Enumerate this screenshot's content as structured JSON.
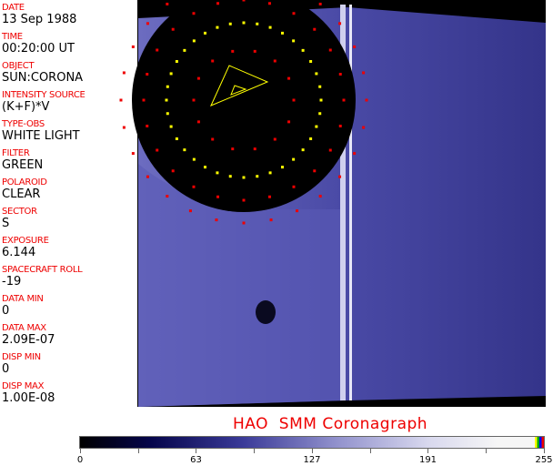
{
  "fields": [
    {
      "label": "DATE",
      "value": "13 Sep 1988"
    },
    {
      "label": "TIME",
      "value": "00:20:00 UT"
    },
    {
      "label": "OBJECT",
      "value": "SUN:CORONA"
    },
    {
      "label": "INTENSITY SOURCE",
      "value": "(K+F)*V"
    },
    {
      "label": "TYPE-OBS",
      "value": "WHITE LIGHT"
    },
    {
      "label": "FILTER",
      "value": "GREEN"
    },
    {
      "label": "POLAROID",
      "value": "CLEAR"
    },
    {
      "label": "SECTOR",
      "value": "S"
    },
    {
      "label": "EXPOSURE",
      "value": "6.144"
    },
    {
      "label": "SPACECRAFT ROLL",
      "value": "-19"
    },
    {
      "label": "DATA MIN",
      "value": "0"
    },
    {
      "label": "DATA MAX",
      "value": "2.09E-07"
    },
    {
      "label": "DISP MIN",
      "value": "0"
    },
    {
      "label": "DISP MAX",
      "value": "1.00E-08"
    }
  ],
  "title": "HAO  SMM Coronagraph",
  "colorbar": {
    "ticks": [
      "0",
      "63",
      "127",
      "191",
      "255"
    ],
    "colors": {
      "low": "#000000",
      "mid": "#3a3a98",
      "high": "#f6f6f6"
    }
  }
}
